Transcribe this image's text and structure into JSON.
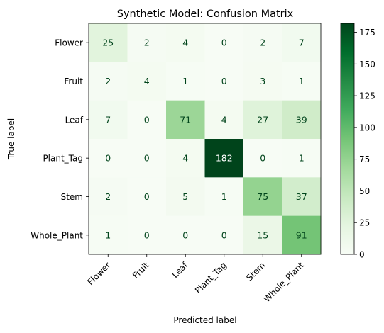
{
  "chart_data": {
    "type": "heatmap",
    "title": "Synthetic Model: Confusion Matrix",
    "xlabel": "Predicted label",
    "ylabel": "True label",
    "x_categories": [
      "Flower",
      "Fruit",
      "Leaf",
      "Plant_Tag",
      "Stem",
      "Whole_Plant"
    ],
    "y_categories": [
      "Flower",
      "Fruit",
      "Leaf",
      "Plant_Tag",
      "Stem",
      "Whole_Plant"
    ],
    "values": [
      [
        25,
        2,
        4,
        0,
        2,
        7
      ],
      [
        2,
        4,
        1,
        0,
        3,
        1
      ],
      [
        7,
        0,
        71,
        4,
        27,
        39
      ],
      [
        0,
        0,
        4,
        182,
        0,
        1
      ],
      [
        2,
        0,
        5,
        1,
        75,
        37
      ],
      [
        1,
        0,
        0,
        0,
        15,
        91
      ]
    ],
    "colormap": "Greens",
    "colorbar": {
      "min": 0,
      "max": 182,
      "ticks": [
        0,
        25,
        50,
        75,
        100,
        125,
        150,
        175
      ]
    },
    "grid": false
  }
}
